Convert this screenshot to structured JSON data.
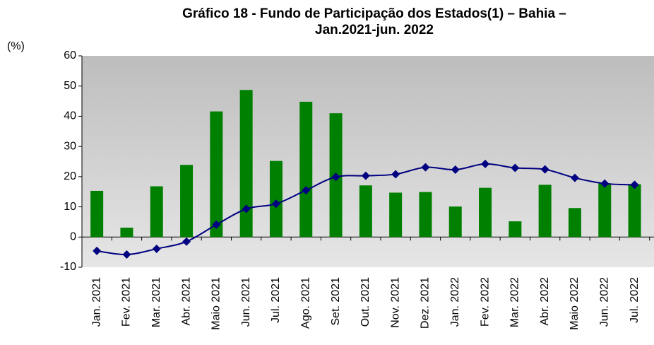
{
  "chart_data": {
    "type": "bar_line",
    "title": [
      "Gráfico 18 - Fundo de Participação dos Estados(1) – Bahia –",
      "Jan.2021-jun. 2022"
    ],
    "y_label": "(%)",
    "categories": [
      "Jan. 2021",
      "Fev. 2021",
      "Mar. 2021",
      "Abr. 2021",
      "Maio 2021",
      "Jun. 2021",
      "Jul. 2021",
      "Ago. 2021",
      "Set. 2021",
      "Out. 2021",
      "Nov. 2021",
      "Dez. 2021",
      "Jan. 2022",
      "Fev. 2022",
      "Mar. 2022",
      "Abr. 2022",
      "Maio 2022",
      "Jun. 2022",
      "Jul. 2022"
    ],
    "series": [
      {
        "kind": "bar",
        "color": "#008000",
        "values": [
          15.3,
          3.1,
          16.8,
          23.9,
          41.6,
          48.7,
          25.2,
          44.8,
          41.0,
          17.1,
          14.7,
          14.9,
          10.1,
          16.3,
          5.2,
          17.3,
          9.6,
          17.8,
          17.5
        ]
      },
      {
        "kind": "line",
        "color": "#000080",
        "values": [
          -4.6,
          -5.8,
          -3.9,
          -1.5,
          4.1,
          9.3,
          11.0,
          15.5,
          19.9,
          20.3,
          20.8,
          23.1,
          22.3,
          24.2,
          22.9,
          22.4,
          19.6,
          17.7,
          17.3
        ]
      }
    ],
    "ylim": [
      -10,
      60
    ],
    "yticks": [
      -10,
      0,
      10,
      20,
      30,
      40,
      50,
      60
    ]
  }
}
